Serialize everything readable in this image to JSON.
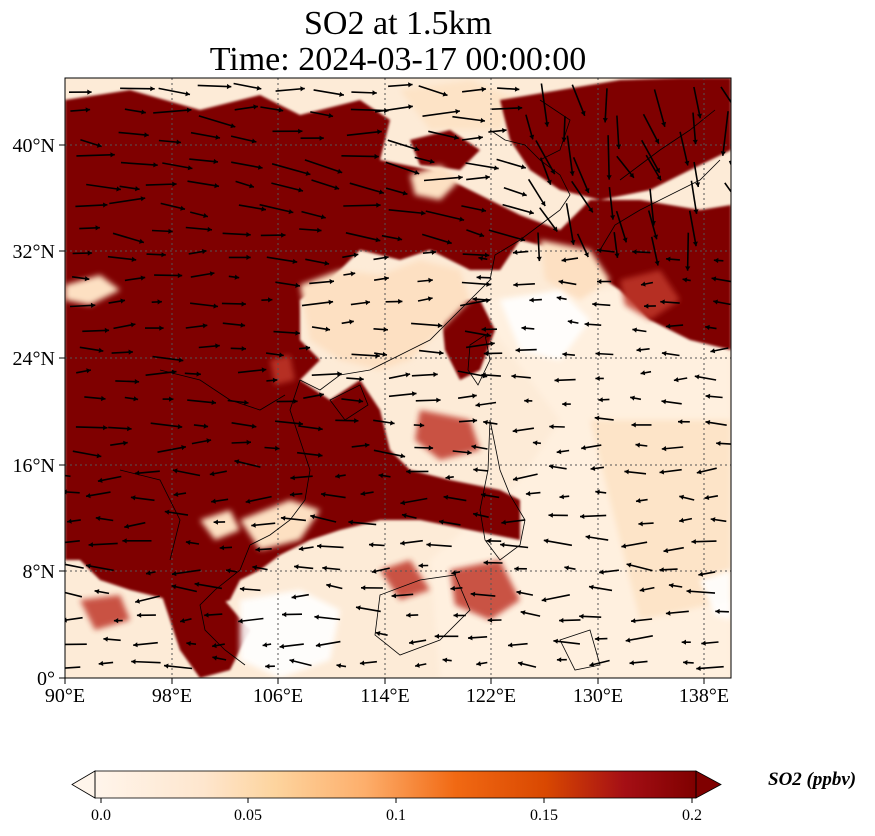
{
  "title": {
    "line1": "SO2 at 1.5km",
    "line2": "Time: 2024-03-17 00:00:00"
  },
  "map": {
    "lon_range": [
      90,
      140
    ],
    "lat_range": [
      0,
      45
    ],
    "gridlines": true,
    "coastlines": true,
    "arrows": "wind vectors",
    "x_ticks": [
      "90°E",
      "98°E",
      "106°E",
      "114°E",
      "122°E",
      "130°E",
      "138°E"
    ],
    "y_ticks": [
      "0°",
      "8°N",
      "16°N",
      "24°N",
      "32°N",
      "40°N"
    ]
  },
  "colorbar": {
    "label": "SO2 (ppbv)",
    "ticks": [
      "0.0",
      "0.05",
      "0.1",
      "0.15",
      "0.2"
    ],
    "min": 0.0,
    "max": 0.2,
    "extend": "both",
    "colormap": [
      "#fff5eb",
      "#fdd49e",
      "#fdbb84",
      "#fc8d59",
      "#ef6548",
      "#d7301f",
      "#b30000",
      "#7f0000"
    ]
  },
  "colors": {
    "high": "#7f0000",
    "low": "#fff5eb",
    "arrow": "#000000"
  }
}
